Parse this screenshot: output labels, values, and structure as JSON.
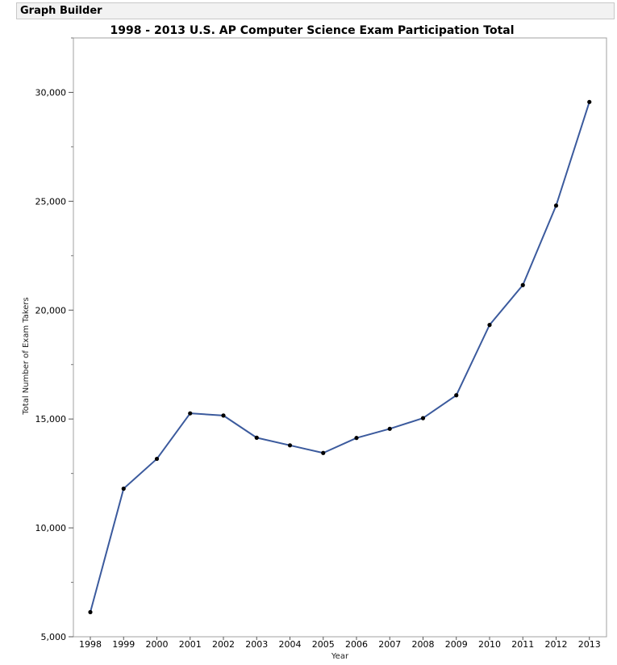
{
  "window": {
    "title": "Graph Builder"
  },
  "chart_data": {
    "type": "line",
    "title": "1998 - 2013 U.S. AP Computer Science Exam Participation Total",
    "xlabel": "Year",
    "ylabel": "Total Number of Exam Takers",
    "categories": [
      "1998",
      "1999",
      "2000",
      "2001",
      "2002",
      "2003",
      "2004",
      "2005",
      "2006",
      "2007",
      "2008",
      "2009",
      "2010",
      "2011",
      "2012",
      "2013"
    ],
    "series": [
      {
        "values": [
          6130,
          11800,
          13170,
          15260,
          15160,
          14140,
          13790,
          13440,
          14130,
          14550,
          15040,
          16090,
          19320,
          21150,
          24800,
          29560
        ]
      }
    ],
    "ylim": [
      5000,
      32500
    ],
    "yticks": [
      5000,
      10000,
      15000,
      20000,
      25000,
      30000
    ],
    "ytick_labels": [
      "5,000",
      "10,000",
      "15,000",
      "20,000",
      "25,000",
      "30,000"
    ],
    "minor_yticks": [
      7500,
      12500,
      17500,
      22500,
      27500,
      32500
    ],
    "line_color": "#3b5a9d",
    "marker_color": "#000000",
    "grid": false,
    "legend": "none"
  }
}
